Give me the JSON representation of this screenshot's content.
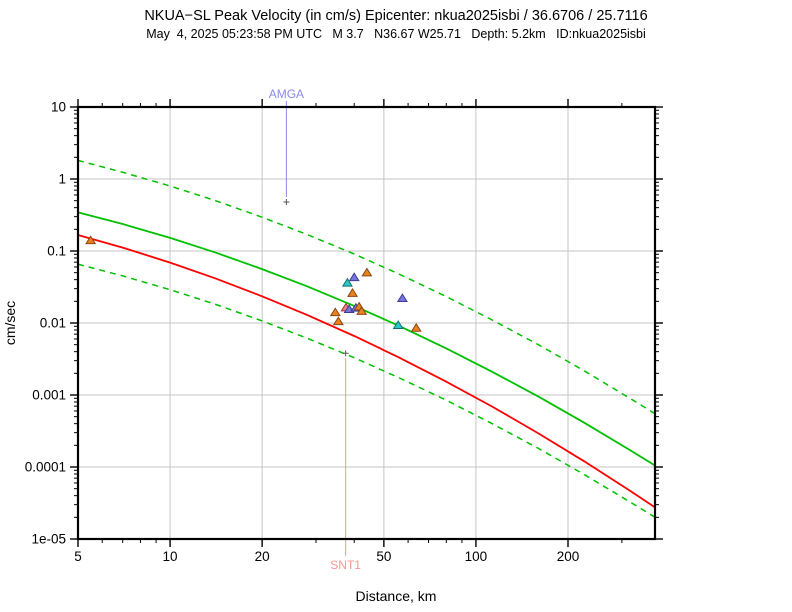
{
  "header": {
    "title": "NKUA−SL Peak Velocity (in cm/s) Epicenter: nkua2025isbi / 36.6706 / 25.7116",
    "subtitle": "May  4, 2025 05:23:58 PM UTC   M 3.7   N36.67 W25.71   Depth: 5.2km   ID:nkua2025isbi"
  },
  "chart_data": {
    "type": "scatter",
    "xlabel": "Distance, km",
    "ylabel": "cm/sec",
    "x_range": [
      5,
      385
    ],
    "y_range": [
      1e-05,
      10
    ],
    "x_scale": "log",
    "y_scale": "log",
    "x_ticks": {
      "labeled": [
        5,
        10,
        20,
        50,
        100,
        200
      ],
      "labels": [
        "5",
        "10",
        "20",
        "50",
        "100",
        "200"
      ],
      "minor": [
        6,
        7,
        8,
        9,
        30,
        40,
        60,
        70,
        80,
        90,
        300
      ]
    },
    "y_ticks": {
      "labeled": [
        10,
        1,
        0.1,
        0.01,
        0.001,
        0.0001,
        1e-05
      ],
      "labels": [
        "10",
        "1",
        "0.1",
        "0.01",
        "0.001",
        "0.0001",
        "1e-05"
      ]
    },
    "gridlines": {
      "x": [
        10,
        20,
        50,
        100,
        200
      ],
      "y": [
        1,
        0.1,
        0.01,
        0.001,
        0.0001
      ]
    },
    "colors": {
      "green": "#00c000",
      "red": "#ff0000",
      "grid": "#c6c6c6",
      "frame": "#000000",
      "amga": "#8a8ae8",
      "snt1": "#ff9494",
      "plus_marker": "#555555",
      "triangle_orange_fill": "#e8821e",
      "triangle_orange_edge": "#8b4513",
      "triangle_blue_fill": "#7776d8",
      "triangle_blue_edge": "#3c3c96",
      "triangle_cyan_fill": "#2ec6c6",
      "triangle_cyan_edge": "#0e7070",
      "triangle_pink_fill": "#e88888",
      "triangle_pink_edge": "#a03030"
    },
    "curves": [
      {
        "name": "upper-bound",
        "color": "#00c000",
        "style": "dashed",
        "width": 1.5,
        "points": [
          [
            5,
            1.81
          ],
          [
            7,
            1.24
          ],
          [
            10,
            0.8
          ],
          [
            14,
            0.504
          ],
          [
            20,
            0.295
          ],
          [
            28,
            0.17
          ],
          [
            40,
            0.0908
          ],
          [
            56,
            0.048
          ],
          [
            80,
            0.0233
          ],
          [
            113,
            0.011
          ],
          [
            160,
            0.005
          ],
          [
            226,
            0.00217
          ],
          [
            320,
            0.00089
          ],
          [
            385,
            0.00055
          ]
        ]
      },
      {
        "name": "median-prediction",
        "color": "#00c000",
        "style": "solid",
        "width": 1.8,
        "points": [
          [
            5,
            0.344
          ],
          [
            7,
            0.237
          ],
          [
            10,
            0.152
          ],
          [
            14,
            0.0959
          ],
          [
            20,
            0.0561
          ],
          [
            28,
            0.0324
          ],
          [
            40,
            0.0173
          ],
          [
            56,
            0.00914
          ],
          [
            80,
            0.00444
          ],
          [
            113,
            0.0021
          ],
          [
            160,
            0.00095
          ],
          [
            226,
            0.000413
          ],
          [
            320,
            0.00017
          ],
          [
            385,
            0.000105
          ]
        ]
      },
      {
        "name": "alternate-prediction",
        "color": "#ff0000",
        "style": "solid",
        "width": 1.8,
        "points": [
          [
            5,
            0.167
          ],
          [
            7,
            0.1115
          ],
          [
            10,
            0.069
          ],
          [
            14,
            0.0419
          ],
          [
            20,
            0.0235
          ],
          [
            28,
            0.013
          ],
          [
            40,
            0.0066
          ],
          [
            56,
            0.00333
          ],
          [
            80,
            0.00153
          ],
          [
            113,
            0.00069
          ],
          [
            160,
            0.000293
          ],
          [
            226,
            0.00012
          ],
          [
            320,
            4.64e-05
          ],
          [
            385,
            2.75e-05
          ]
        ]
      },
      {
        "name": "lower-bound",
        "color": "#00c000",
        "style": "dashed",
        "width": 1.5,
        "points": [
          [
            5,
            0.0655
          ],
          [
            7,
            0.0451
          ],
          [
            10,
            0.029
          ],
          [
            14,
            0.0183
          ],
          [
            20,
            0.0107
          ],
          [
            28,
            0.00617
          ],
          [
            40,
            0.0033
          ],
          [
            56,
            0.00174
          ],
          [
            80,
            0.000846
          ],
          [
            113,
            0.0004
          ],
          [
            160,
            0.000181
          ],
          [
            226,
            7.87e-05
          ],
          [
            320,
            3.24e-05
          ],
          [
            385,
            2e-05
          ]
        ]
      }
    ],
    "stations": {
      "triangles": [
        {
          "d": 5.5,
          "v": 0.14,
          "color": "orange"
        },
        {
          "d": 44,
          "v": 0.05,
          "color": "orange"
        },
        {
          "d": 40,
          "v": 0.043,
          "color": "blue"
        },
        {
          "d": 38,
          "v": 0.036,
          "color": "cyan"
        },
        {
          "d": 39.5,
          "v": 0.026,
          "color": "orange"
        },
        {
          "d": 57.5,
          "v": 0.022,
          "color": "blue"
        },
        {
          "d": 37.6,
          "v": 0.0163,
          "color": "pink"
        },
        {
          "d": 38.5,
          "v": 0.0155,
          "color": "blue"
        },
        {
          "d": 40.5,
          "v": 0.0162,
          "color": "blue"
        },
        {
          "d": 41.5,
          "v": 0.0168,
          "color": "orange"
        },
        {
          "d": 42.3,
          "v": 0.0146,
          "color": "orange"
        },
        {
          "d": 34.7,
          "v": 0.014,
          "color": "orange"
        },
        {
          "d": 35.5,
          "v": 0.0105,
          "color": "orange"
        },
        {
          "d": 55.7,
          "v": 0.0093,
          "color": "cyan"
        },
        {
          "d": 63.8,
          "v": 0.0085,
          "color": "orange"
        }
      ],
      "flagged": [
        {
          "name": "AMGA",
          "d": 24,
          "v": 0.48,
          "label_side": "top"
        },
        {
          "name": "SNT1",
          "d": 37.5,
          "v": 0.0038,
          "label_side": "bottom"
        }
      ]
    }
  }
}
